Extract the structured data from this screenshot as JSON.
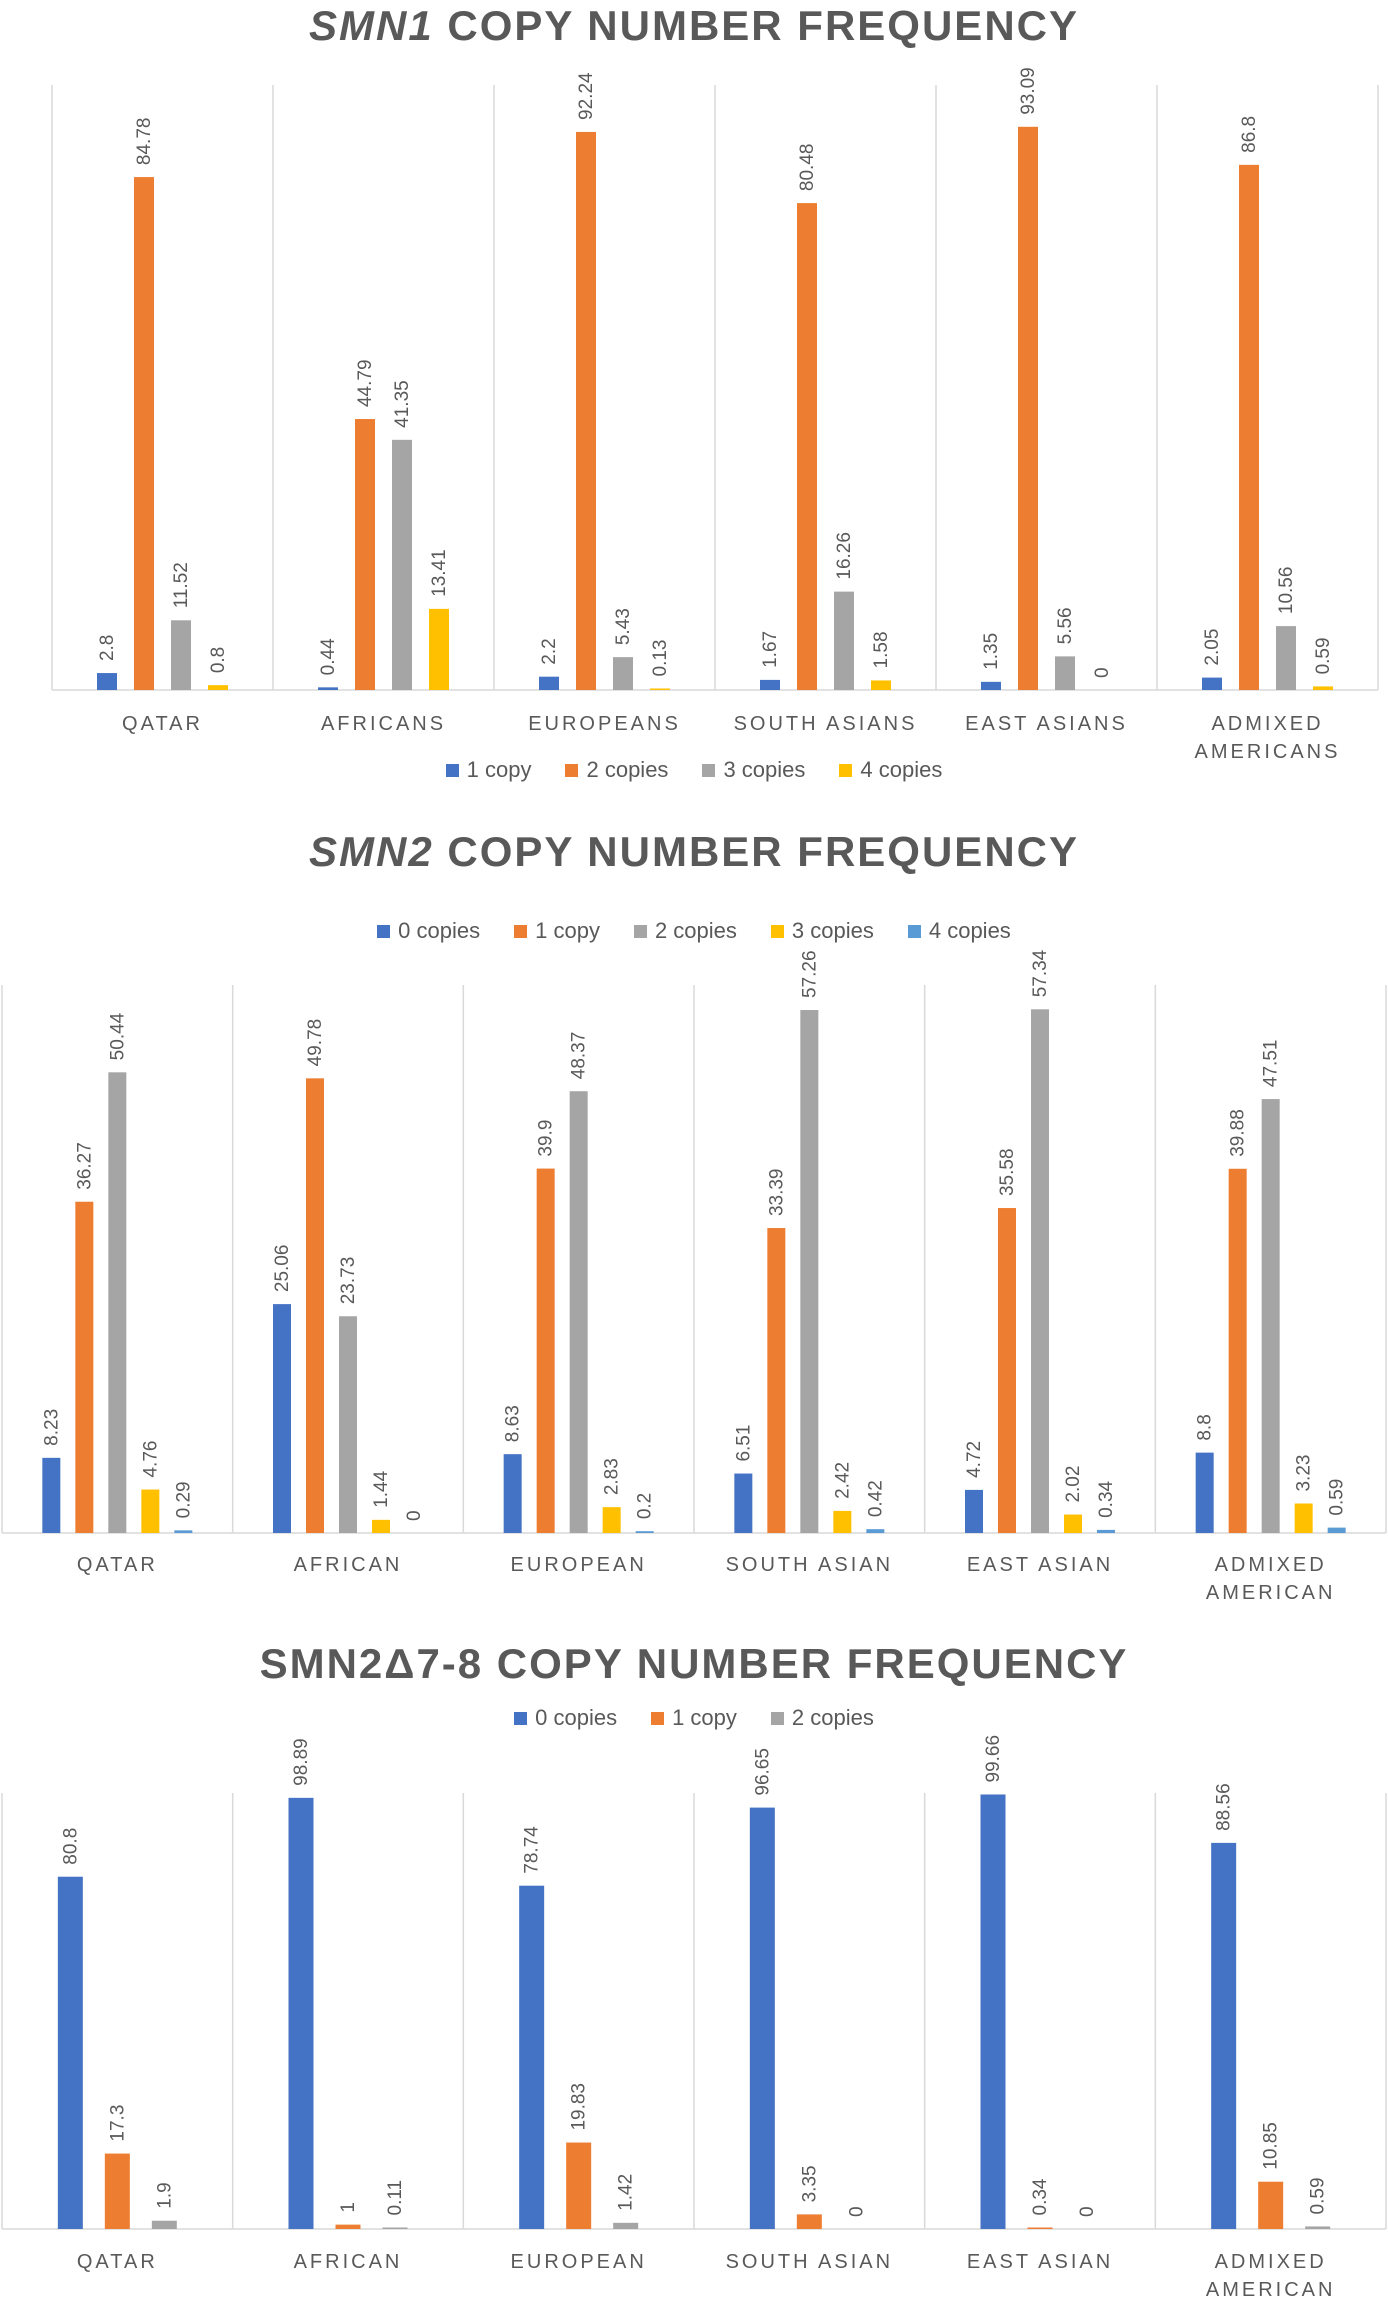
{
  "charts": [
    {
      "title_italic": "SMN1",
      "title_rest": " COPY NUMBER FREQUENCY",
      "legend_position": "bottom"
    },
    {
      "title_italic": "SMN2",
      "title_rest": " COPY NUMBER FREQUENCY",
      "legend_position": "top"
    },
    {
      "title_italic": "",
      "title_rest": "SMN2Δ7-8 COPY NUMBER FREQUENCY",
      "legend_position": "top"
    }
  ],
  "chart_data": [
    {
      "type": "bar",
      "title": "SMN1 COPY NUMBER FREQUENCY",
      "categories": [
        "QATAR",
        "AFRICANS",
        "EUROPEANS",
        "SOUTH ASIANS",
        "EAST ASIANS",
        "ADMIXED AMERICANS"
      ],
      "series": [
        {
          "name": "1 copy",
          "color": "#4472C4",
          "values": [
            2.8,
            0.44,
            2.2,
            1.67,
            1.35,
            2.05
          ]
        },
        {
          "name": "2 copies",
          "color": "#ED7D31",
          "values": [
            84.78,
            44.79,
            92.24,
            80.48,
            93.09,
            86.8
          ]
        },
        {
          "name": "3 copies",
          "color": "#A5A5A5",
          "values": [
            11.52,
            41.35,
            5.43,
            16.26,
            5.56,
            10.56
          ]
        },
        {
          "name": "4 copies",
          "color": "#FFC000",
          "values": [
            0.8,
            13.41,
            0.13,
            1.58,
            0,
            0.59
          ]
        }
      ],
      "ylim": [
        0,
        100
      ],
      "grid": false
    },
    {
      "type": "bar",
      "title": "SMN2 COPY NUMBER FREQUENCY",
      "categories": [
        "QATAR",
        "AFRICAN",
        "EUROPEAN",
        "SOUTH ASIAN",
        "EAST ASIAN",
        "ADMIXED AMERICAN"
      ],
      "series": [
        {
          "name": "0 copies",
          "color": "#4472C4",
          "values": [
            8.23,
            25.06,
            8.63,
            6.51,
            4.72,
            8.8
          ]
        },
        {
          "name": "1 copy",
          "color": "#ED7D31",
          "values": [
            36.27,
            49.78,
            39.9,
            33.39,
            35.58,
            39.88
          ]
        },
        {
          "name": "2 copies",
          "color": "#A5A5A5",
          "values": [
            50.44,
            23.73,
            48.37,
            57.26,
            57.34,
            47.51
          ]
        },
        {
          "name": "3 copies",
          "color": "#FFC000",
          "values": [
            4.76,
            1.44,
            2.83,
            2.42,
            2.02,
            3.23
          ]
        },
        {
          "name": "4 copies",
          "color": "#5B9BD5",
          "values": [
            0.29,
            0,
            0.2,
            0.42,
            0.34,
            0.59
          ]
        }
      ],
      "ylim": [
        0,
        60
      ],
      "grid": false
    },
    {
      "type": "bar",
      "title": "SMN2Δ7-8 COPY NUMBER FREQUENCY",
      "categories": [
        "QATAR",
        "AFRICAN",
        "EUROPEAN",
        "SOUTH ASIAN",
        "EAST ASIAN",
        "ADMIXED AMERICAN"
      ],
      "series": [
        {
          "name": "0 copies",
          "color": "#4472C4",
          "values": [
            80.8,
            98.89,
            78.74,
            96.65,
            99.66,
            88.56
          ]
        },
        {
          "name": "1 copy",
          "color": "#ED7D31",
          "values": [
            17.3,
            1,
            19.83,
            3.35,
            0.34,
            10.85
          ]
        },
        {
          "name": "2 copies",
          "color": "#A5A5A5",
          "values": [
            1.9,
            0.11,
            1.42,
            0,
            0,
            0.59
          ]
        }
      ],
      "ylim": [
        0,
        100
      ],
      "grid": false
    }
  ]
}
